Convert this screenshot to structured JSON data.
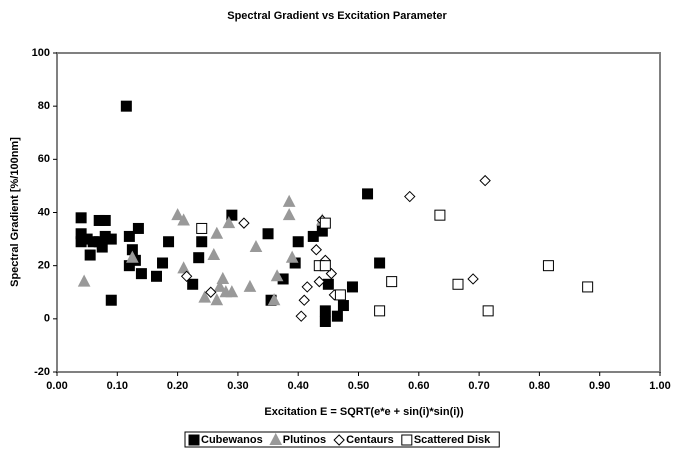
{
  "chart_data": {
    "type": "scatter",
    "title": "Spectral Gradient vs Excitation Parameter",
    "x_label": "Excitation E = SQRT(e*e + sin(i)*sin(i))",
    "y_label": "Spectral Gradient [%/100nm]",
    "xlim": [
      0,
      1
    ],
    "ylim": [
      -20,
      100
    ],
    "xticks": [
      {
        "value": 0,
        "label": "0.00"
      },
      {
        "value": 0.1,
        "label": "0.10"
      },
      {
        "value": 0.2,
        "label": "0.20"
      },
      {
        "value": 0.3,
        "label": "0.30"
      },
      {
        "value": 0.4,
        "label": "0.40"
      },
      {
        "value": 0.5,
        "label": "0.50"
      },
      {
        "value": 0.6,
        "label": "0.60"
      },
      {
        "value": 0.7,
        "label": "0.70"
      },
      {
        "value": 0.8,
        "label": "0.80"
      },
      {
        "value": 0.9,
        "label": "0.90"
      },
      {
        "value": 1,
        "label": "1.00"
      }
    ],
    "yticks": [
      -20,
      0,
      20,
      40,
      60,
      80,
      100
    ],
    "grid": false,
    "legend": "bottom",
    "series": [
      {
        "name": "Cubewanos",
        "marker": "square",
        "color": "#000000",
        "filled": true,
        "x": [
          0.04,
          0.04,
          0.04,
          0.05,
          0.055,
          0.06,
          0.07,
          0.07,
          0.075,
          0.08,
          0.08,
          0.09,
          0.09,
          0.115,
          0.12,
          0.12,
          0.125,
          0.13,
          0.135,
          0.14,
          0.165,
          0.175,
          0.185,
          0.225,
          0.235,
          0.24,
          0.29,
          0.35,
          0.355,
          0.375,
          0.395,
          0.4,
          0.425,
          0.44,
          0.445,
          0.445,
          0.45,
          0.465,
          0.475,
          0.49,
          0.515,
          0.535
        ],
        "y": [
          38,
          32,
          29,
          30,
          24,
          29,
          37,
          29,
          27,
          37,
          31,
          30,
          7,
          80,
          31,
          20,
          26,
          22,
          34,
          17,
          16,
          21,
          29,
          13,
          23,
          29,
          39,
          32,
          7,
          15,
          21,
          29,
          31,
          33,
          -1,
          3,
          13,
          1,
          5,
          12,
          47,
          21
        ]
      },
      {
        "name": "Plutinos",
        "marker": "triangle",
        "color": "#999999",
        "filled": true,
        "x": [
          0.045,
          0.125,
          0.2,
          0.21,
          0.21,
          0.245,
          0.26,
          0.265,
          0.265,
          0.27,
          0.275,
          0.28,
          0.285,
          0.29,
          0.32,
          0.33,
          0.36,
          0.365,
          0.385,
          0.385,
          0.39,
          0.44
        ],
        "y": [
          14,
          23,
          39,
          37,
          19,
          8,
          24,
          7,
          32,
          12,
          15,
          10,
          36,
          10,
          12,
          27,
          7,
          16,
          44,
          39,
          23,
          37
        ]
      },
      {
        "name": "Centaurs",
        "marker": "diamond",
        "color": "#000000",
        "filled": false,
        "x": [
          0.215,
          0.255,
          0.31,
          0.405,
          0.41,
          0.415,
          0.43,
          0.435,
          0.44,
          0.445,
          0.455,
          0.46,
          0.585,
          0.69,
          0.71
        ],
        "y": [
          16,
          10,
          36,
          1,
          7,
          12,
          26,
          14,
          37,
          22,
          17,
          9,
          46,
          15,
          52
        ]
      },
      {
        "name": "Scattered Disk",
        "marker": "square",
        "color": "#000000",
        "filled": false,
        "x": [
          0.24,
          0.435,
          0.445,
          0.445,
          0.47,
          0.535,
          0.555,
          0.635,
          0.665,
          0.715,
          0.815,
          0.88
        ],
        "y": [
          34,
          20,
          36,
          20,
          9,
          3,
          14,
          39,
          13,
          3,
          20,
          12
        ]
      }
    ]
  }
}
